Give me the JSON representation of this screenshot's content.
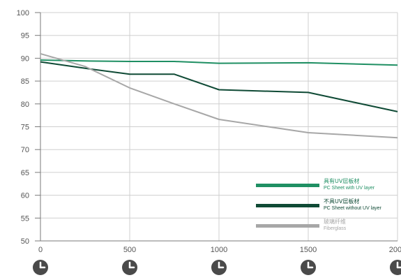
{
  "chart_data": {
    "type": "line",
    "x": [
      0,
      250,
      500,
      750,
      1000,
      1500,
      2000
    ],
    "xticks": [
      "0",
      "500",
      "1000",
      "1500",
      "2000"
    ],
    "xlim": [
      0,
      2000
    ],
    "ylim": [
      50,
      100
    ],
    "yticks": [
      "50",
      "55",
      "60",
      "65",
      "70",
      "75",
      "80",
      "85",
      "90",
      "95",
      "100"
    ],
    "grid": true,
    "legend_position": "bottom-right",
    "series": [
      {
        "name": "具有UV层板材",
        "subtitle": "PC Sheet with UV layer",
        "color": "#1f8f63",
        "values": [
          89.6,
          89.4,
          89.3,
          89.3,
          88.9,
          89.0,
          88.5
        ]
      },
      {
        "name": "不具UV层板材",
        "subtitle": "PC Sheet without UV layer",
        "color": "#0f4a35",
        "values": [
          89.2,
          87.8,
          86.5,
          86.5,
          83.1,
          82.5,
          78.3
        ]
      },
      {
        "name": "玻璃纤维",
        "subtitle": "Fiberglass",
        "color": "#a7a7a7",
        "values": [
          91.0,
          88.2,
          83.5,
          80.0,
          76.6,
          73.7,
          72.6
        ]
      }
    ],
    "icons": [
      "clock-icon",
      "clock-icon",
      "clock-icon",
      "clock-icon",
      "clock-icon"
    ],
    "axis_color": "#7a7a7a",
    "grid_color": "#cfcfcf"
  }
}
